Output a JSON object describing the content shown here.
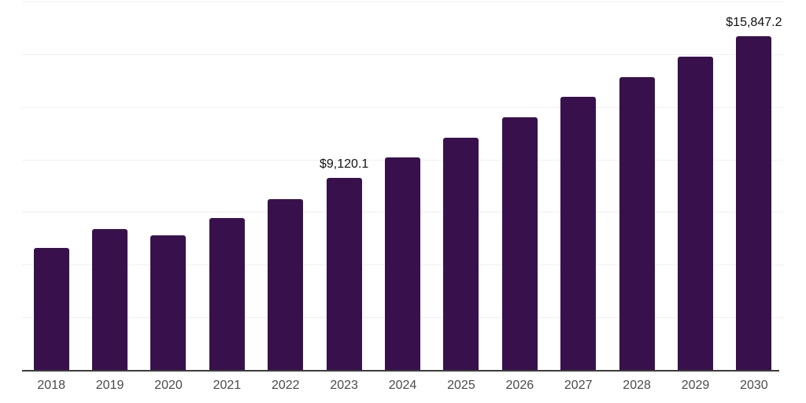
{
  "chart_data": {
    "type": "bar",
    "title": "",
    "xlabel": "",
    "ylabel": "",
    "categories": [
      "2018",
      "2019",
      "2020",
      "2021",
      "2022",
      "2023",
      "2024",
      "2025",
      "2026",
      "2027",
      "2028",
      "2029",
      "2030"
    ],
    "values": [
      5800,
      6700,
      6400,
      7230,
      8130,
      9120.1,
      10100,
      11050,
      12000,
      12960,
      13900,
      14880,
      15847.2
    ],
    "point_labels": [
      "",
      "",
      "",
      "",
      "",
      "$9,120.1",
      "",
      "",
      "",
      "",
      "",
      "",
      "$15,847.2"
    ],
    "ylim": [
      0,
      17500
    ],
    "gridline_step": 2500,
    "grid": "horizontal-only",
    "legend": "none",
    "colors": {
      "bar": "#38114C",
      "axis_line": "#3c3c3c",
      "gridline": "#f0f0f2",
      "tick_label": "#4b4b4b",
      "value_label": "#111111",
      "background": "#ffffff"
    }
  }
}
